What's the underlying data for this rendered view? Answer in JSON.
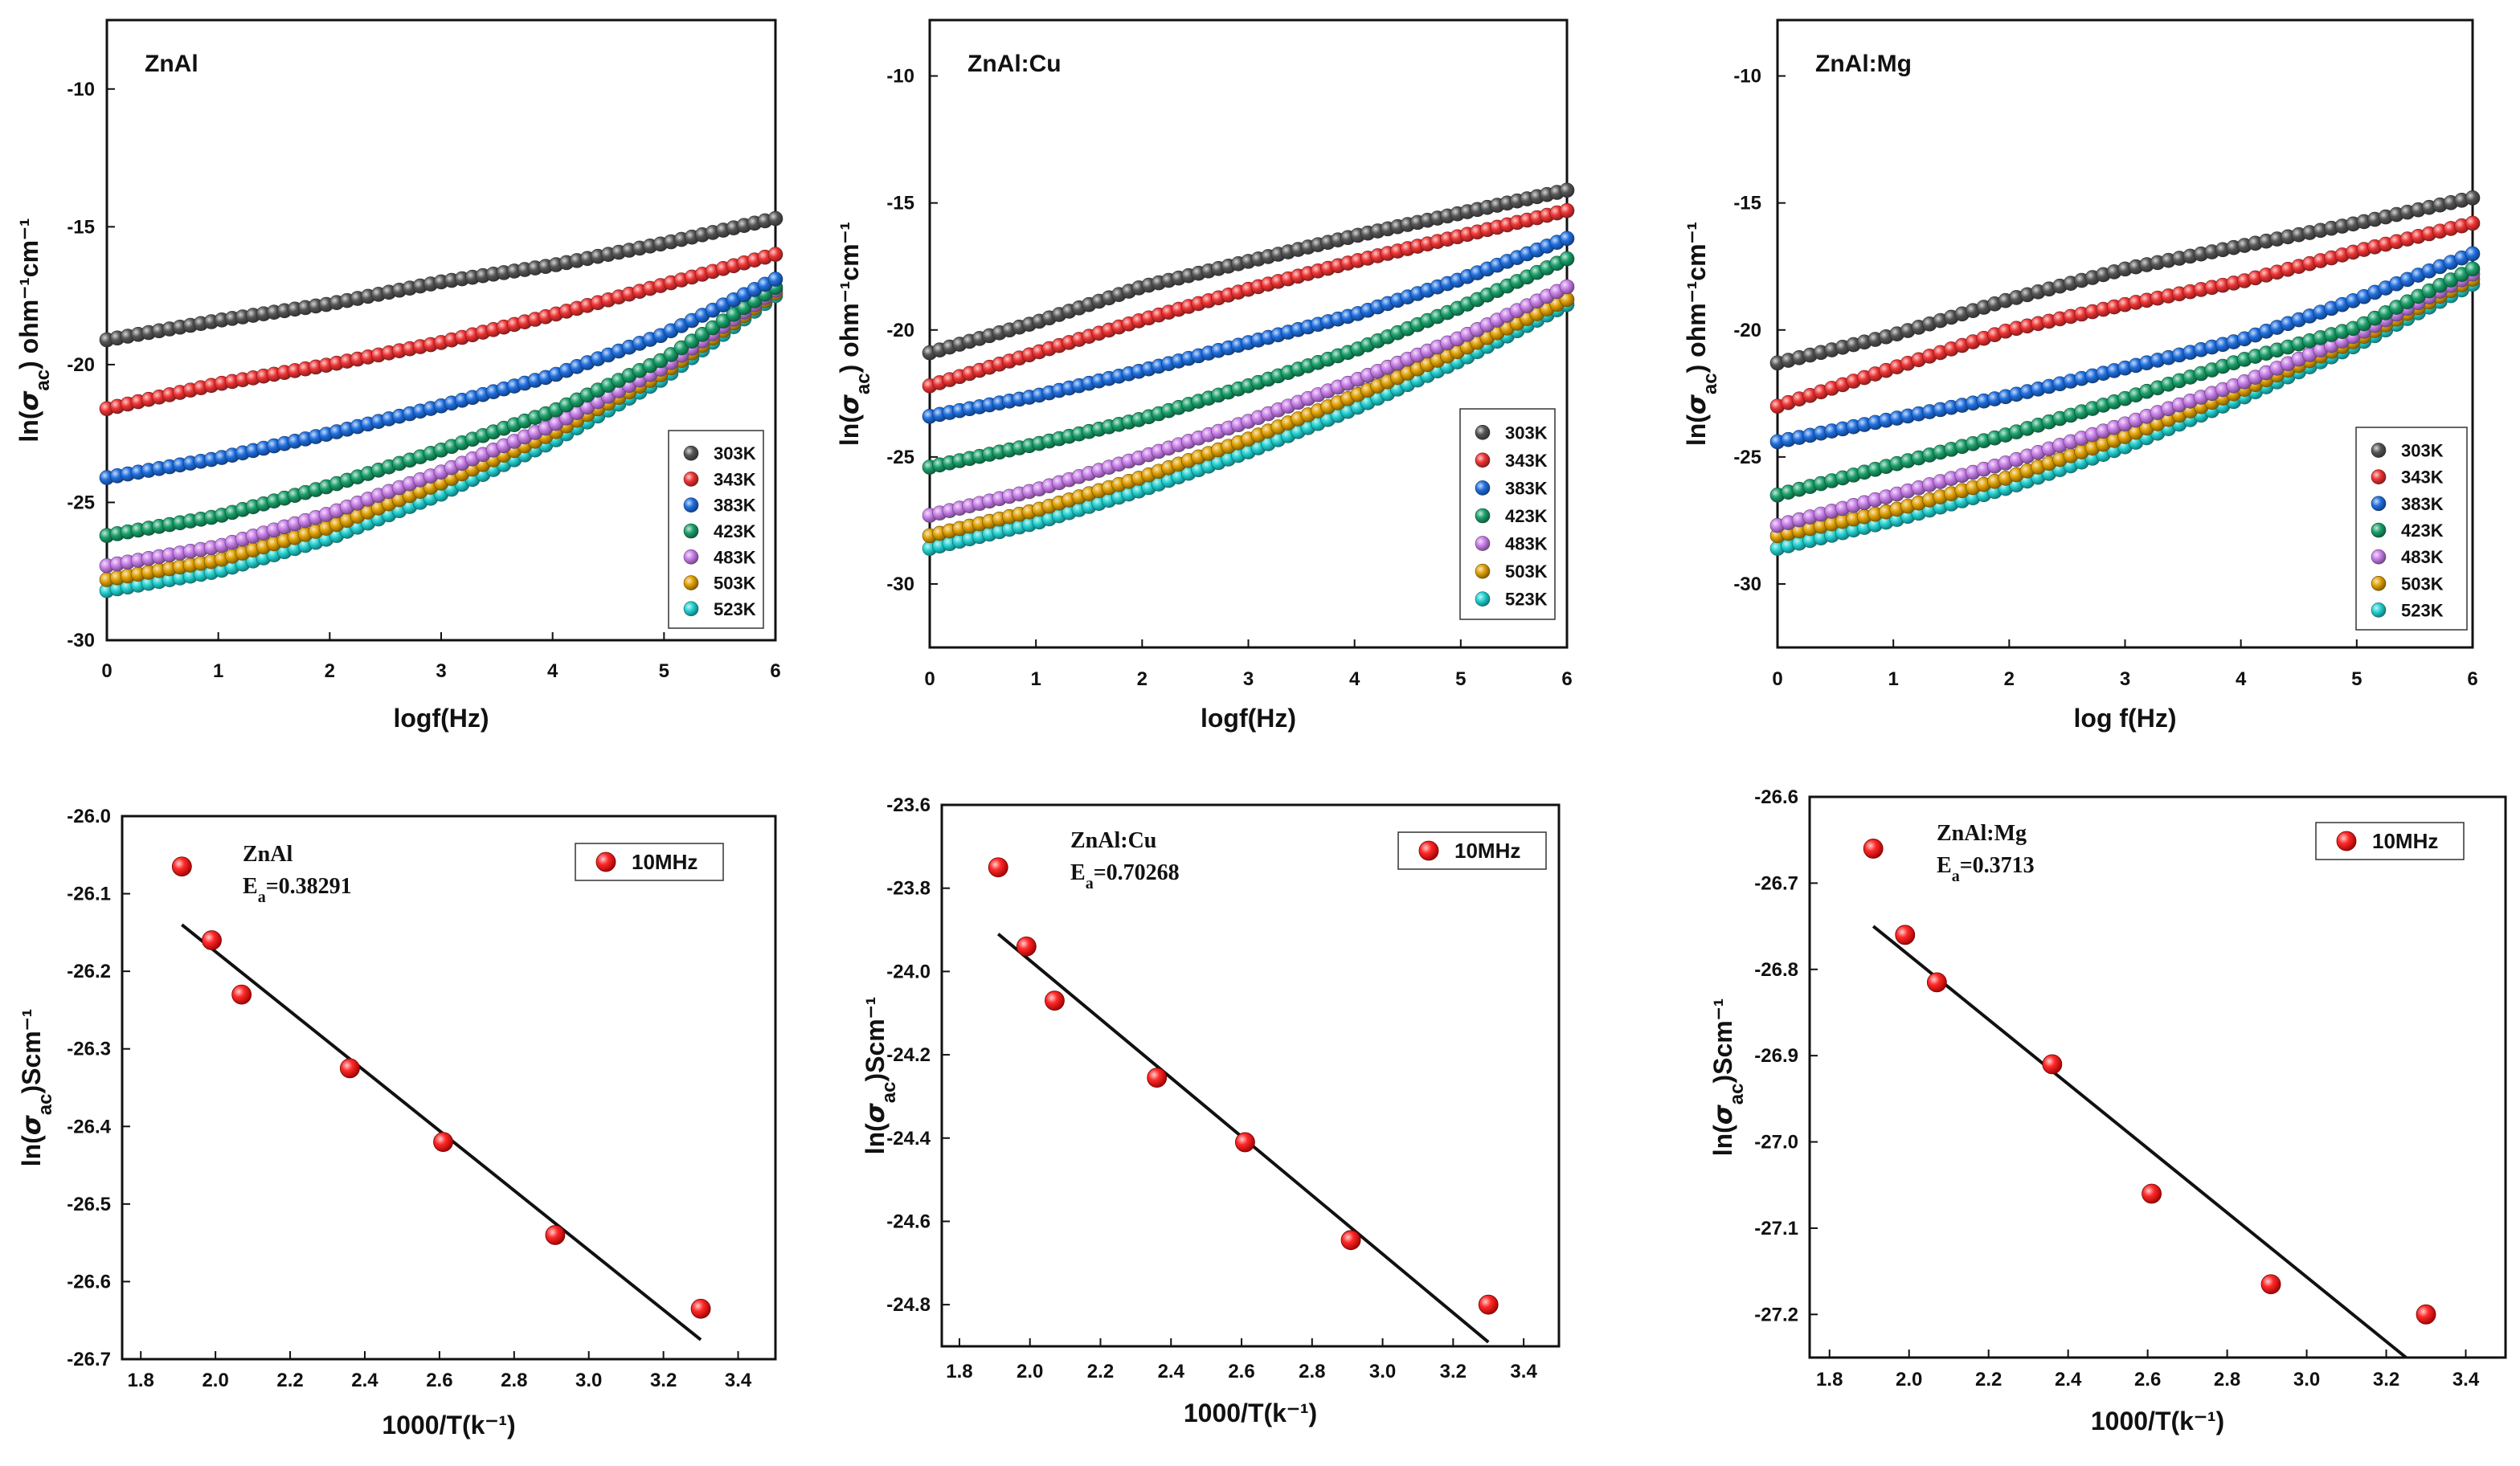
{
  "chart_data": [
    {
      "type": "scatter",
      "panel_title": "ZnAl",
      "xlabel": "logf(Hz)",
      "ylabel": "ln(σac) ohm⁻¹cm⁻¹",
      "xlim": [
        0,
        6
      ],
      "ylim": [
        -30,
        -7.5
      ],
      "xticks": [
        "0",
        "1",
        "2",
        "3",
        "4",
        "5",
        "6"
      ],
      "yticks": [
        "-30",
        "-25",
        "-20",
        "-15",
        "-10"
      ],
      "series": [
        {
          "name": "303K",
          "color": "#555555",
          "values": [
            [
              0,
              -19.1
            ],
            [
              1,
              -18.4
            ],
            [
              2,
              -17.8
            ],
            [
              3,
              -17.0
            ],
            [
              4,
              -16.4
            ],
            [
              5,
              -15.6
            ],
            [
              6,
              -14.7
            ]
          ]
        },
        {
          "name": "343K",
          "color": "#ee3333",
          "values": [
            [
              0,
              -21.6
            ],
            [
              1,
              -20.7
            ],
            [
              2,
              -20.0
            ],
            [
              3,
              -19.2
            ],
            [
              4,
              -18.2
            ],
            [
              5,
              -17.1
            ],
            [
              6,
              -16.0
            ]
          ]
        },
        {
          "name": "383K",
          "color": "#1f6fe0",
          "values": [
            [
              0,
              -24.1
            ],
            [
              1,
              -23.4
            ],
            [
              2,
              -22.5
            ],
            [
              3,
              -21.5
            ],
            [
              4,
              -20.4
            ],
            [
              5,
              -18.9
            ],
            [
              6,
              -16.9
            ]
          ]
        },
        {
          "name": "423K",
          "color": "#1aa06a",
          "values": [
            [
              0,
              -26.2
            ],
            [
              1,
              -25.5
            ],
            [
              2,
              -24.4
            ],
            [
              3,
              -23.1
            ],
            [
              4,
              -21.7
            ],
            [
              5,
              -19.8
            ],
            [
              6,
              -17.2
            ]
          ]
        },
        {
          "name": "483K",
          "color": "#c77de8",
          "values": [
            [
              0,
              -27.3
            ],
            [
              1,
              -26.6
            ],
            [
              2,
              -25.4
            ],
            [
              3,
              -23.9
            ],
            [
              4,
              -22.2
            ],
            [
              5,
              -20.1
            ],
            [
              6,
              -17.3
            ]
          ]
        },
        {
          "name": "503K",
          "color": "#e0a000",
          "values": [
            [
              0,
              -27.8
            ],
            [
              1,
              -27.1
            ],
            [
              2,
              -25.9
            ],
            [
              3,
              -24.3
            ],
            [
              4,
              -22.5
            ],
            [
              5,
              -20.3
            ],
            [
              6,
              -17.4
            ]
          ]
        },
        {
          "name": "523K",
          "color": "#22d0d0",
          "values": [
            [
              0,
              -28.2
            ],
            [
              1,
              -27.5
            ],
            [
              2,
              -26.3
            ],
            [
              3,
              -24.7
            ],
            [
              4,
              -22.8
            ],
            [
              5,
              -20.5
            ],
            [
              6,
              -17.5
            ]
          ]
        }
      ]
    },
    {
      "type": "scatter",
      "panel_title": "ZnAl:Cu",
      "xlabel": "logf(Hz)",
      "ylabel": "ln(σac) ohm⁻¹cm⁻¹",
      "xlim": [
        0,
        6
      ],
      "ylim": [
        -32.5,
        -7.8
      ],
      "xticks": [
        "0",
        "1",
        "2",
        "3",
        "4",
        "5",
        "6"
      ],
      "yticks": [
        "-30",
        "-25",
        "-20",
        "-15",
        "-10"
      ],
      "series": [
        {
          "name": "303K",
          "color": "#555555",
          "values": [
            [
              0,
              -20.9
            ],
            [
              1,
              -19.7
            ],
            [
              2,
              -18.3
            ],
            [
              3,
              -17.3
            ],
            [
              4,
              -16.3
            ],
            [
              5,
              -15.4
            ],
            [
              6,
              -14.5
            ]
          ]
        },
        {
          "name": "343K",
          "color": "#ee3333",
          "values": [
            [
              0,
              -22.2
            ],
            [
              1,
              -20.9
            ],
            [
              2,
              -19.6
            ],
            [
              3,
              -18.4
            ],
            [
              4,
              -17.3
            ],
            [
              5,
              -16.3
            ],
            [
              6,
              -15.3
            ]
          ]
        },
        {
          "name": "383K",
          "color": "#1f6fe0",
          "values": [
            [
              0,
              -23.4
            ],
            [
              1,
              -22.6
            ],
            [
              2,
              -21.6
            ],
            [
              3,
              -20.5
            ],
            [
              4,
              -19.4
            ],
            [
              5,
              -18.0
            ],
            [
              6,
              -16.4
            ]
          ]
        },
        {
          "name": "423K",
          "color": "#1aa06a",
          "values": [
            [
              0,
              -25.4
            ],
            [
              1,
              -24.5
            ],
            [
              2,
              -23.5
            ],
            [
              3,
              -22.2
            ],
            [
              4,
              -20.8
            ],
            [
              5,
              -19.1
            ],
            [
              6,
              -17.2
            ]
          ]
        },
        {
          "name": "483K",
          "color": "#c77de8",
          "values": [
            [
              0,
              -27.3
            ],
            [
              1,
              -26.3
            ],
            [
              2,
              -25.0
            ],
            [
              3,
              -23.6
            ],
            [
              4,
              -22.0
            ],
            [
              5,
              -20.3
            ],
            [
              6,
              -18.3
            ]
          ]
        },
        {
          "name": "503K",
          "color": "#e0a000",
          "values": [
            [
              0,
              -28.1
            ],
            [
              1,
              -27.1
            ],
            [
              2,
              -25.8
            ],
            [
              3,
              -24.3
            ],
            [
              4,
              -22.6
            ],
            [
              5,
              -20.8
            ],
            [
              6,
              -18.8
            ]
          ]
        },
        {
          "name": "523K",
          "color": "#22d0d0",
          "values": [
            [
              0,
              -28.6
            ],
            [
              1,
              -27.6
            ],
            [
              2,
              -26.3
            ],
            [
              3,
              -24.8
            ],
            [
              4,
              -23.1
            ],
            [
              5,
              -21.2
            ],
            [
              6,
              -19.0
            ]
          ]
        }
      ]
    },
    {
      "type": "scatter",
      "panel_title": "ZnAl:Mg",
      "xlabel": "log f(Hz)",
      "ylabel": "ln(σac) ohm⁻¹cm⁻¹",
      "xlim": [
        0,
        6
      ],
      "ylim": [
        -32.5,
        -7.8
      ],
      "xticks": [
        "0",
        "1",
        "2",
        "3",
        "4",
        "5",
        "6"
      ],
      "yticks": [
        "-30",
        "-25",
        "-20",
        "-15",
        "-10"
      ],
      "series": [
        {
          "name": "303K",
          "color": "#555555",
          "values": [
            [
              0,
              -21.3
            ],
            [
              1,
              -20.2
            ],
            [
              2,
              -18.8
            ],
            [
              3,
              -17.6
            ],
            [
              4,
              -16.7
            ],
            [
              5,
              -15.8
            ],
            [
              6,
              -14.8
            ]
          ]
        },
        {
          "name": "343K",
          "color": "#ee3333",
          "values": [
            [
              0,
              -23.0
            ],
            [
              1,
              -21.5
            ],
            [
              2,
              -20.0
            ],
            [
              3,
              -19.0
            ],
            [
              4,
              -18.1
            ],
            [
              5,
              -16.9
            ],
            [
              6,
              -15.8
            ]
          ]
        },
        {
          "name": "383K",
          "color": "#1f6fe0",
          "values": [
            [
              0,
              -24.4
            ],
            [
              1,
              -23.5
            ],
            [
              2,
              -22.6
            ],
            [
              3,
              -21.5
            ],
            [
              4,
              -20.4
            ],
            [
              5,
              -18.8
            ],
            [
              6,
              -17.0
            ]
          ]
        },
        {
          "name": "423K",
          "color": "#1aa06a",
          "values": [
            [
              0,
              -26.5
            ],
            [
              1,
              -25.3
            ],
            [
              2,
              -24.1
            ],
            [
              3,
              -22.7
            ],
            [
              4,
              -21.2
            ],
            [
              5,
              -19.9
            ],
            [
              6,
              -17.6
            ]
          ]
        },
        {
          "name": "483K",
          "color": "#c77de8",
          "values": [
            [
              0,
              -27.7
            ],
            [
              1,
              -26.5
            ],
            [
              2,
              -25.2
            ],
            [
              3,
              -23.7
            ],
            [
              4,
              -22.1
            ],
            [
              5,
              -20.2
            ],
            [
              6,
              -17.8
            ]
          ]
        },
        {
          "name": "503K",
          "color": "#e0a000",
          "values": [
            [
              0,
              -28.1
            ],
            [
              1,
              -27.1
            ],
            [
              2,
              -25.8
            ],
            [
              3,
              -24.2
            ],
            [
              4,
              -22.4
            ],
            [
              5,
              -20.4
            ],
            [
              6,
              -18.0
            ]
          ]
        },
        {
          "name": "523K",
          "color": "#22d0d0",
          "values": [
            [
              0,
              -28.6
            ],
            [
              1,
              -27.5
            ],
            [
              2,
              -26.2
            ],
            [
              3,
              -24.6
            ],
            [
              4,
              -22.7
            ],
            [
              5,
              -20.6
            ],
            [
              6,
              -18.2
            ]
          ]
        }
      ]
    },
    {
      "type": "scatter",
      "sample_label": "ZnAl",
      "ea_label": "=0.38291",
      "legend": "10MHz",
      "xlabel": "1000/T(k⁻¹)",
      "ylabel": "ln(σac)Scm⁻¹",
      "xlim": [
        1.75,
        3.5
      ],
      "ylim": [
        -26.7,
        -26.0
      ],
      "xticks": [
        "1.8",
        "2.0",
        "2.2",
        "2.4",
        "2.6",
        "2.8",
        "3.0",
        "3.2",
        "3.4"
      ],
      "yticks": [
        "-26.7",
        "-26.6",
        "-26.5",
        "-26.4",
        "-26.3",
        "-26.2",
        "-26.1",
        "-26.0"
      ],
      "x": [
        1.91,
        1.99,
        2.07,
        2.36,
        2.61,
        2.91,
        3.3
      ],
      "y": [
        -26.065,
        -26.16,
        -26.23,
        -26.325,
        -26.42,
        -26.54,
        -26.635
      ],
      "fit": [
        [
          1.91,
          -26.14
        ],
        [
          3.3,
          -26.675
        ]
      ]
    },
    {
      "type": "scatter",
      "sample_label": "ZnAl:Cu",
      "ea_label": "=0.70268",
      "legend": "10MHz",
      "xlabel": "1000/T(k⁻¹)",
      "ylabel": "ln(σac)Scm⁻¹",
      "xlim": [
        1.75,
        3.5
      ],
      "ylim": [
        -24.9,
        -23.6
      ],
      "xticks": [
        "1.8",
        "2.0",
        "2.2",
        "2.4",
        "2.6",
        "2.8",
        "3.0",
        "3.2",
        "3.4"
      ],
      "yticks": [
        "-24.8",
        "-24.6",
        "-24.4",
        "-24.2",
        "-24.0",
        "-23.8",
        "-23.6"
      ],
      "x": [
        1.91,
        1.99,
        2.07,
        2.36,
        2.61,
        2.91,
        3.3
      ],
      "y": [
        -23.75,
        -23.94,
        -24.07,
        -24.255,
        -24.41,
        -24.645,
        -24.8
      ],
      "fit": [
        [
          1.91,
          -23.91
        ],
        [
          3.3,
          -24.89
        ]
      ]
    },
    {
      "type": "scatter",
      "sample_label": "ZnAl:Mg",
      "ea_label": "=0.3713",
      "legend": "10MHz",
      "xlabel": "1000/T(k⁻¹)",
      "ylabel": "ln(σac)Scm⁻¹",
      "xlim": [
        1.75,
        3.5
      ],
      "ylim": [
        -27.25,
        -26.6
      ],
      "xticks": [
        "1.8",
        "2.0",
        "2.2",
        "2.4",
        "2.6",
        "2.8",
        "3.0",
        "3.2",
        "3.4"
      ],
      "yticks": [
        "-27.2",
        "-27.1",
        "-27.0",
        "-26.9",
        "-26.8",
        "-26.7",
        "-26.6"
      ],
      "x": [
        1.91,
        1.99,
        2.07,
        2.36,
        2.61,
        2.91,
        3.3
      ],
      "y": [
        -26.66,
        -26.76,
        -26.815,
        -26.91,
        -27.06,
        -27.165,
        -27.2
      ],
      "fit": [
        [
          1.91,
          -26.75
        ],
        [
          3.25,
          -27.25
        ]
      ]
    }
  ]
}
